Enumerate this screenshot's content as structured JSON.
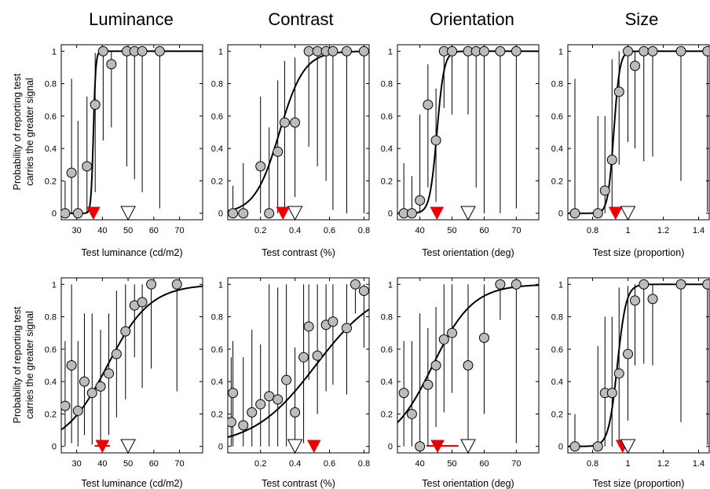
{
  "figure": {
    "column_titles": [
      "Luminance",
      "Contrast",
      "Orientation",
      "Size"
    ],
    "ylabel_lines": [
      "Probability of reporting test",
      "carries the greater signal"
    ]
  },
  "colors": {
    "point_fill": "#bcbcbc",
    "point_stroke": "#000000",
    "marker_red": "#ee0000",
    "marker_open": "#ffffff",
    "curve": "#000000",
    "error_bar": "#000000"
  },
  "chart_data": [
    {
      "type": "scatter",
      "row": 1,
      "column": "Luminance",
      "xlabel": "Test luminance (cd/m2)",
      "ylabel": "Probability of reporting test carries the greater signal",
      "xlim": [
        24,
        79
      ],
      "ylim": [
        -0.04,
        1.04
      ],
      "xticks": [
        {
          "v": 30,
          "t": "30"
        },
        {
          "v": 40,
          "t": "40"
        },
        {
          "v": 50,
          "t": "50"
        },
        {
          "v": 60,
          "t": "60"
        },
        {
          "v": 70,
          "t": "70"
        }
      ],
      "yticks": [
        {
          "v": 0,
          "t": "0"
        },
        {
          "v": 0.2,
          "t": "0.2"
        },
        {
          "v": 0.4,
          "t": "0.4"
        },
        {
          "v": 0.6,
          "t": "0.6"
        },
        {
          "v": 0.8,
          "t": "0.8"
        },
        {
          "v": 1,
          "t": "1"
        }
      ],
      "points": [
        {
          "x": 25.5,
          "y": 0,
          "lo": 0,
          "hi": 0.2
        },
        {
          "x": 28,
          "y": 0.25,
          "lo": 0,
          "hi": 0.83
        },
        {
          "x": 30.5,
          "y": 0,
          "lo": 0,
          "hi": 0.57
        },
        {
          "x": 34,
          "y": 0.29,
          "lo": 0,
          "hi": 0.72
        },
        {
          "x": 37.2,
          "y": 0.67,
          "lo": 0.13,
          "hi": 0.99
        },
        {
          "x": 40.3,
          "y": 1,
          "lo": 0.45,
          "hi": 1
        },
        {
          "x": 43.5,
          "y": 0.92,
          "lo": 0.53,
          "hi": 1
        },
        {
          "x": 49.5,
          "y": 1,
          "lo": 0.29,
          "hi": 1
        },
        {
          "x": 52.5,
          "y": 1,
          "lo": 0.21,
          "hi": 1
        },
        {
          "x": 55.5,
          "y": 1,
          "lo": 0.13,
          "hi": 1
        },
        {
          "x": 62.3,
          "y": 1,
          "lo": 0.03,
          "hi": 1
        }
      ],
      "curve": {
        "pse": 36.5,
        "slope": 2.2
      },
      "pse_marker": {
        "x": 36.5
      },
      "standard_marker": {
        "x": 50
      }
    },
    {
      "type": "scatter",
      "row": 1,
      "column": "Contrast",
      "xlabel": "Test contrast (%)",
      "ylabel": "",
      "xlim": [
        0.01,
        0.83
      ],
      "ylim": [
        -0.04,
        1.04
      ],
      "xticks": [
        {
          "v": 0.2,
          "t": "0.2"
        },
        {
          "v": 0.4,
          "t": "0.4"
        },
        {
          "v": 0.6,
          "t": "0.6"
        },
        {
          "v": 0.8,
          "t": "0.8"
        }
      ],
      "yticks": [
        {
          "v": 0,
          "t": "0"
        },
        {
          "v": 0.2,
          "t": "0.2"
        },
        {
          "v": 0.4,
          "t": "0.4"
        },
        {
          "v": 0.6,
          "t": "0.6"
        },
        {
          "v": 0.8,
          "t": "0.8"
        },
        {
          "v": 1,
          "t": "1"
        }
      ],
      "points": [
        {
          "x": 0.04,
          "y": 0,
          "lo": 0,
          "hi": 0.17
        },
        {
          "x": 0.1,
          "y": 0,
          "lo": 0,
          "hi": 0.31
        },
        {
          "x": 0.2,
          "y": 0.29,
          "lo": 0,
          "hi": 0.72
        },
        {
          "x": 0.25,
          "y": 0,
          "lo": 0,
          "hi": 0.53
        },
        {
          "x": 0.3,
          "y": 0.38,
          "lo": 0,
          "hi": 0.82
        },
        {
          "x": 0.34,
          "y": 0.56,
          "lo": 0,
          "hi": 0.94
        },
        {
          "x": 0.4,
          "y": 0.56,
          "lo": 0.1,
          "hi": 0.96
        },
        {
          "x": 0.48,
          "y": 1,
          "lo": 0.41,
          "hi": 1
        },
        {
          "x": 0.53,
          "y": 1,
          "lo": 0.29,
          "hi": 1
        },
        {
          "x": 0.58,
          "y": 1,
          "lo": 0.2,
          "hi": 1
        },
        {
          "x": 0.62,
          "y": 1,
          "lo": 0.02,
          "hi": 1
        },
        {
          "x": 0.7,
          "y": 1,
          "lo": 0,
          "hi": 1
        },
        {
          "x": 0.8,
          "y": 1,
          "lo": 0,
          "hi": 1
        }
      ],
      "curve": {
        "pse": 0.31,
        "slope": 14
      },
      "pse_marker": {
        "x": 0.33
      },
      "standard_marker": {
        "x": 0.4
      }
    },
    {
      "type": "scatter",
      "row": 1,
      "column": "Orientation",
      "xlabel": "Test orientation (deg)",
      "ylabel": "",
      "xlim": [
        33,
        77
      ],
      "ylim": [
        -0.04,
        1.04
      ],
      "xticks": [
        {
          "v": 40,
          "t": "40"
        },
        {
          "v": 50,
          "t": "50"
        },
        {
          "v": 60,
          "t": "60"
        },
        {
          "v": 70,
          "t": "70"
        }
      ],
      "yticks": [
        {
          "v": 0,
          "t": "0"
        },
        {
          "v": 0.2,
          "t": "0.2"
        },
        {
          "v": 0.4,
          "t": "0.4"
        },
        {
          "v": 0.6,
          "t": "0.6"
        },
        {
          "v": 0.8,
          "t": "0.8"
        },
        {
          "v": 1,
          "t": "1"
        }
      ],
      "points": [
        {
          "x": 35,
          "y": 0,
          "lo": 0,
          "hi": 0.31
        },
        {
          "x": 37.5,
          "y": 0,
          "lo": 0,
          "hi": 0.23
        },
        {
          "x": 40,
          "y": 0.08,
          "lo": 0,
          "hi": 0.61
        },
        {
          "x": 42.5,
          "y": 0.67,
          "lo": 0.16,
          "hi": 0.92
        },
        {
          "x": 45,
          "y": 0.45,
          "lo": 0.07,
          "hi": 0.77
        },
        {
          "x": 47.5,
          "y": 1,
          "lo": 0.65,
          "hi": 1
        },
        {
          "x": 50,
          "y": 1,
          "lo": 0.61,
          "hi": 1
        },
        {
          "x": 55,
          "y": 1,
          "lo": 0.61,
          "hi": 1
        },
        {
          "x": 57.5,
          "y": 1,
          "lo": 0.16,
          "hi": 1
        },
        {
          "x": 60,
          "y": 1,
          "lo": 0,
          "hi": 1
        },
        {
          "x": 65,
          "y": 1,
          "lo": 0,
          "hi": 1
        },
        {
          "x": 70,
          "y": 1,
          "lo": 0.03,
          "hi": 1
        }
      ],
      "curve": {
        "pse": 45.3,
        "slope": 0.9
      },
      "pse_marker": {
        "x": 45.3
      },
      "standard_marker": {
        "x": 55
      }
    },
    {
      "type": "scatter",
      "row": 1,
      "column": "Size",
      "xlabel": "Test size (proportion)",
      "ylabel": "",
      "xlim": [
        0.66,
        1.46
      ],
      "ylim": [
        -0.04,
        1.04
      ],
      "xticks": [
        {
          "v": 0.8,
          "t": "0.8"
        },
        {
          "v": 1,
          "t": "1"
        },
        {
          "v": 1.2,
          "t": "1.2"
        },
        {
          "v": 1.4,
          "t": "1.4"
        }
      ],
      "yticks": [
        {
          "v": 0,
          "t": "0"
        },
        {
          "v": 0.2,
          "t": "0.2"
        },
        {
          "v": 0.4,
          "t": "0.4"
        },
        {
          "v": 0.6,
          "t": "0.6"
        },
        {
          "v": 0.8,
          "t": "0.8"
        },
        {
          "v": 1,
          "t": "1"
        }
      ],
      "points": [
        {
          "x": 0.7,
          "y": 0,
          "lo": 0,
          "hi": 0.83
        },
        {
          "x": 0.83,
          "y": 0,
          "lo": 0,
          "hi": 0.6
        },
        {
          "x": 0.87,
          "y": 0.14,
          "lo": 0,
          "hi": 0.6
        },
        {
          "x": 0.91,
          "y": 0.33,
          "lo": 0,
          "hi": 0.95
        },
        {
          "x": 0.95,
          "y": 0.75,
          "lo": 0.3,
          "hi": 1
        },
        {
          "x": 1.0,
          "y": 1,
          "lo": 0.44,
          "hi": 1
        },
        {
          "x": 1.04,
          "y": 0.91,
          "lo": 0.4,
          "hi": 1
        },
        {
          "x": 1.09,
          "y": 1,
          "lo": 0.32,
          "hi": 1
        },
        {
          "x": 1.14,
          "y": 1,
          "lo": 0.35,
          "hi": 1
        },
        {
          "x": 1.3,
          "y": 1,
          "lo": 0.2,
          "hi": 1
        },
        {
          "x": 1.45,
          "y": 1,
          "lo": 0.01,
          "hi": 1
        }
      ],
      "curve": {
        "pse": 0.92,
        "slope": 60
      },
      "pse_marker": {
        "x": 0.93
      },
      "standard_marker": {
        "x": 1.0
      }
    },
    {
      "type": "scatter",
      "row": 2,
      "column": "Luminance",
      "xlabel": "Test luminance (cd/m2)",
      "ylabel": "Probability of reporting test carries the greater signal",
      "xlim": [
        24,
        79
      ],
      "ylim": [
        -0.04,
        1.04
      ],
      "xticks": [
        {
          "v": 30,
          "t": "30"
        },
        {
          "v": 40,
          "t": "40"
        },
        {
          "v": 50,
          "t": "50"
        },
        {
          "v": 60,
          "t": "60"
        },
        {
          "v": 70,
          "t": "70"
        }
      ],
      "yticks": [
        {
          "v": 0,
          "t": "0"
        },
        {
          "v": 0.2,
          "t": "0.2"
        },
        {
          "v": 0.4,
          "t": "0.4"
        },
        {
          "v": 0.6,
          "t": "0.6"
        },
        {
          "v": 0.8,
          "t": "0.8"
        },
        {
          "v": 1,
          "t": "1"
        }
      ],
      "points": [
        {
          "x": 25.5,
          "y": 0.25,
          "lo": 0,
          "hi": 0.65
        },
        {
          "x": 28,
          "y": 0.5,
          "lo": 0.02,
          "hi": 1
        },
        {
          "x": 30.5,
          "y": 0.22,
          "lo": 0,
          "hi": 0.65
        },
        {
          "x": 33,
          "y": 0.4,
          "lo": 0.07,
          "hi": 0.82
        },
        {
          "x": 36,
          "y": 0.33,
          "lo": 0.01,
          "hi": 0.82
        },
        {
          "x": 39.3,
          "y": 0.37,
          "lo": 0.04,
          "hi": 0.72
        },
        {
          "x": 42.5,
          "y": 0.45,
          "lo": 0.07,
          "hi": 0.82
        },
        {
          "x": 45.5,
          "y": 0.57,
          "lo": 0.18,
          "hi": 0.96
        },
        {
          "x": 49,
          "y": 0.71,
          "lo": 0.29,
          "hi": 1
        },
        {
          "x": 52.5,
          "y": 0.87,
          "lo": 0.55,
          "hi": 1
        },
        {
          "x": 55.5,
          "y": 0.89,
          "lo": 0.36,
          "hi": 1
        },
        {
          "x": 59,
          "y": 1,
          "lo": 0.48,
          "hi": 1
        },
        {
          "x": 69,
          "y": 1,
          "lo": 0.34,
          "hi": 1
        }
      ],
      "curve": {
        "pse": 42,
        "slope": 0.12
      },
      "pse_marker": {
        "x": 40,
        "err": [
          37,
          43
        ]
      },
      "standard_marker": {
        "x": 50
      }
    },
    {
      "type": "scatter",
      "row": 2,
      "column": "Contrast",
      "xlabel": "Test contrast (%)",
      "ylabel": "",
      "xlim": [
        0.01,
        0.83
      ],
      "ylim": [
        -0.04,
        1.04
      ],
      "xticks": [
        {
          "v": 0.2,
          "t": "0.2"
        },
        {
          "v": 0.4,
          "t": "0.4"
        },
        {
          "v": 0.6,
          "t": "0.6"
        },
        {
          "v": 0.8,
          "t": "0.8"
        }
      ],
      "yticks": [
        {
          "v": 0,
          "t": "0"
        },
        {
          "v": 0.2,
          "t": "0.2"
        },
        {
          "v": 0.4,
          "t": "0.4"
        },
        {
          "v": 0.6,
          "t": "0.6"
        },
        {
          "v": 0.8,
          "t": "0.8"
        },
        {
          "v": 1,
          "t": "1"
        }
      ],
      "points": [
        {
          "x": 0.03,
          "y": 0.15,
          "lo": 0,
          "hi": 0.55
        },
        {
          "x": 0.04,
          "y": 0.33,
          "lo": 0,
          "hi": 0.65
        },
        {
          "x": 0.1,
          "y": 0.13,
          "lo": 0,
          "hi": 0.55
        },
        {
          "x": 0.15,
          "y": 0.21,
          "lo": 0,
          "hi": 0.72
        },
        {
          "x": 0.2,
          "y": 0.26,
          "lo": 0,
          "hi": 0.63
        },
        {
          "x": 0.25,
          "y": 0.31,
          "lo": 0,
          "hi": 1
        },
        {
          "x": 0.3,
          "y": 0.29,
          "lo": 0,
          "hi": 0.98
        },
        {
          "x": 0.35,
          "y": 0.41,
          "lo": 0,
          "hi": 1
        },
        {
          "x": 0.4,
          "y": 0.21,
          "lo": 0,
          "hi": 0.61
        },
        {
          "x": 0.45,
          "y": 0.55,
          "lo": 0.02,
          "hi": 1
        },
        {
          "x": 0.48,
          "y": 0.74,
          "lo": 0.41,
          "hi": 1
        },
        {
          "x": 0.53,
          "y": 0.56,
          "lo": 0.2,
          "hi": 1
        },
        {
          "x": 0.58,
          "y": 0.75,
          "lo": 0.34,
          "hi": 1
        },
        {
          "x": 0.62,
          "y": 0.77,
          "lo": 0.38,
          "hi": 1
        },
        {
          "x": 0.7,
          "y": 0.73,
          "lo": 0.32,
          "hi": 1
        },
        {
          "x": 0.75,
          "y": 1,
          "lo": 0.82,
          "hi": 1
        },
        {
          "x": 0.8,
          "y": 0.96,
          "lo": 0.61,
          "hi": 1
        }
      ],
      "curve": {
        "pse": 0.52,
        "slope": 5.5
      },
      "pse_marker": {
        "x": 0.51
      },
      "standard_marker": {
        "x": 0.4
      }
    },
    {
      "type": "scatter",
      "row": 2,
      "column": "Orientation",
      "xlabel": "Test orientation (deg)",
      "ylabel": "",
      "xlim": [
        33,
        77
      ],
      "ylim": [
        -0.04,
        1.04
      ],
      "xticks": [
        {
          "v": 40,
          "t": "40"
        },
        {
          "v": 50,
          "t": "50"
        },
        {
          "v": 60,
          "t": "60"
        },
        {
          "v": 70,
          "t": "70"
        }
      ],
      "yticks": [
        {
          "v": 0,
          "t": "0"
        },
        {
          "v": 0.2,
          "t": "0.2"
        },
        {
          "v": 0.4,
          "t": "0.4"
        },
        {
          "v": 0.6,
          "t": "0.6"
        },
        {
          "v": 0.8,
          "t": "0.8"
        },
        {
          "v": 1,
          "t": "1"
        }
      ],
      "points": [
        {
          "x": 35,
          "y": 0.33,
          "lo": 0,
          "hi": 0.65
        },
        {
          "x": 37.5,
          "y": 0.2,
          "lo": 0,
          "hi": 0.65
        },
        {
          "x": 40,
          "y": 0,
          "lo": 0,
          "hi": 0.82
        },
        {
          "x": 42.5,
          "y": 0.38,
          "lo": 0,
          "hi": 0.73
        },
        {
          "x": 45,
          "y": 0.5,
          "lo": 0.12,
          "hi": 0.86
        },
        {
          "x": 47.5,
          "y": 0.66,
          "lo": 0.21,
          "hi": 1
        },
        {
          "x": 50,
          "y": 0.7,
          "lo": 0.33,
          "hi": 1
        },
        {
          "x": 55,
          "y": 0.5,
          "lo": 0,
          "hi": 1
        },
        {
          "x": 60,
          "y": 0.67,
          "lo": 0.2,
          "hi": 1
        },
        {
          "x": 65,
          "y": 1,
          "lo": 0.78,
          "hi": 1
        },
        {
          "x": 70,
          "y": 1,
          "lo": 0.02,
          "hi": 1
        }
      ],
      "curve": {
        "pse": 44,
        "slope": 0.16
      },
      "pse_marker": {
        "x": 45.5,
        "err": [
          42,
          52
        ]
      },
      "standard_marker": {
        "x": 55
      }
    },
    {
      "type": "scatter",
      "row": 2,
      "column": "Size",
      "xlabel": "Test size (proportion)",
      "ylabel": "",
      "xlim": [
        0.66,
        1.46
      ],
      "ylim": [
        -0.04,
        1.04
      ],
      "xticks": [
        {
          "v": 0.8,
          "t": "0.8"
        },
        {
          "v": 1,
          "t": "1"
        },
        {
          "v": 1.2,
          "t": "1.2"
        },
        {
          "v": 1.4,
          "t": "1.4"
        }
      ],
      "yticks": [
        {
          "v": 0,
          "t": "0"
        },
        {
          "v": 0.2,
          "t": "0.2"
        },
        {
          "v": 0.4,
          "t": "0.4"
        },
        {
          "v": 0.6,
          "t": "0.6"
        },
        {
          "v": 0.8,
          "t": "0.8"
        },
        {
          "v": 1,
          "t": "1"
        }
      ],
      "points": [
        {
          "x": 0.7,
          "y": 0,
          "lo": 0,
          "hi": 0.2
        },
        {
          "x": 0.83,
          "y": 0,
          "lo": 0,
          "hi": 0.62
        },
        {
          "x": 0.87,
          "y": 0.33,
          "lo": 0,
          "hi": 0.8
        },
        {
          "x": 0.91,
          "y": 0.33,
          "lo": 0,
          "hi": 0.8
        },
        {
          "x": 0.95,
          "y": 0.45,
          "lo": 0,
          "hi": 0.98
        },
        {
          "x": 1.0,
          "y": 0.57,
          "lo": 0.16,
          "hi": 0.99
        },
        {
          "x": 1.04,
          "y": 0.9,
          "lo": 0.5,
          "hi": 1
        },
        {
          "x": 1.09,
          "y": 1,
          "lo": 0.51,
          "hi": 1
        },
        {
          "x": 1.14,
          "y": 0.91,
          "lo": 0.5,
          "hi": 1
        },
        {
          "x": 1.3,
          "y": 1,
          "lo": 0.15,
          "hi": 1
        },
        {
          "x": 1.45,
          "y": 1,
          "lo": 0.01,
          "hi": 1
        }
      ],
      "curve": {
        "pse": 0.94,
        "slope": 40
      },
      "pse_marker": {
        "x": 0.97
      },
      "standard_marker": {
        "x": 1.0
      }
    }
  ]
}
